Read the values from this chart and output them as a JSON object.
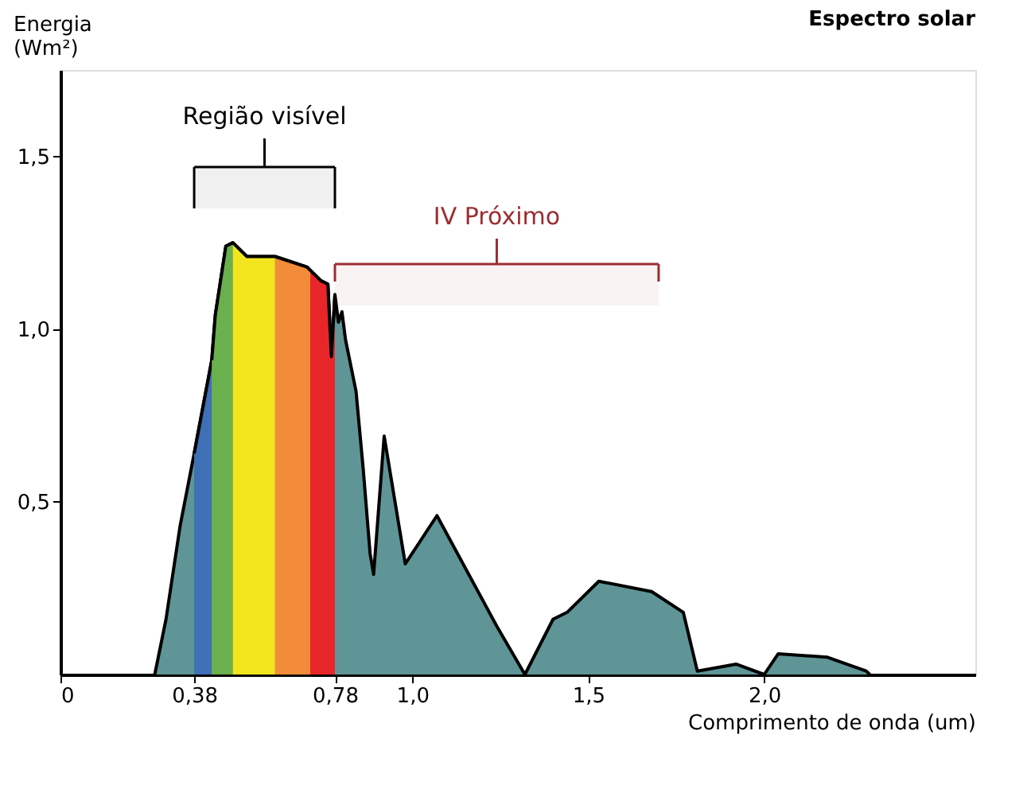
{
  "chart_data": {
    "type": "area",
    "title": "Espectro solar",
    "xlabel": "Comprimento de onda (um)",
    "ylabel": "Energia (Wm²)",
    "xlim": [
      0,
      2.6
    ],
    "ylim": [
      0,
      1.75
    ],
    "xticks": [
      0,
      {
        "value": 0.38,
        "label": "0,38"
      },
      {
        "value": 0.78,
        "label": "0,78"
      },
      {
        "value": 1.0,
        "label": "1,0"
      },
      {
        "value": 1.5,
        "label": "1,5"
      },
      {
        "value": 2.0,
        "label": "2,0"
      }
    ],
    "yticks": [
      {
        "value": 0.5,
        "label": "0,5"
      },
      {
        "value": 1.0,
        "label": "1,0"
      },
      {
        "value": 1.5,
        "label": "1,5"
      }
    ],
    "grid": false,
    "series": [
      {
        "color": "#5f9596",
        "x": [
          0.268,
          0.3,
          0.34,
          0.38,
          0.43,
          0.44,
          0.47,
          0.49,
          0.53,
          0.61,
          0.7,
          0.74,
          0.76,
          0.77,
          0.78,
          0.79,
          0.8,
          0.81,
          0.84,
          0.86,
          0.88,
          0.89,
          0.92,
          0.98,
          1.07,
          1.24,
          1.32,
          1.4,
          1.44,
          1.53,
          1.68,
          1.77,
          1.81,
          1.92,
          2.0,
          2.04,
          2.18,
          2.29,
          2.3
        ],
        "values": [
          0,
          0.16,
          0.43,
          0.64,
          0.91,
          1.04,
          1.24,
          1.25,
          1.21,
          1.21,
          1.18,
          1.14,
          1.13,
          0.92,
          1.1,
          1.02,
          1.05,
          0.97,
          0.82,
          0.6,
          0.35,
          0.29,
          0.69,
          0.32,
          0.46,
          0.14,
          0,
          0.16,
          0.18,
          0.27,
          0.24,
          0.18,
          0.01,
          0.03,
          0,
          0.06,
          0.05,
          0.01,
          0
        ]
      },
      {
        "color": "#3f6fb5",
        "x": [
          0.38,
          0.43
        ],
        "values": [
          0.64,
          0.91
        ]
      },
      {
        "color": "#6ab04c",
        "x": [
          0.43,
          0.44,
          0.47,
          0.49
        ],
        "values": [
          0.91,
          1.04,
          1.24,
          1.25
        ]
      },
      {
        "color": "#f2e51d",
        "x": [
          0.49,
          0.53,
          0.61
        ],
        "values": [
          1.25,
          1.21,
          1.21
        ]
      },
      {
        "color": "#f28c38",
        "x": [
          0.61,
          0.7,
          0.71
        ],
        "values": [
          1.21,
          1.18,
          1.17
        ]
      },
      {
        "color": "#e8262a",
        "x": [
          0.71,
          0.74,
          0.76,
          0.77,
          0.78
        ],
        "values": [
          1.17,
          1.14,
          1.13,
          0.92,
          1.1
        ]
      }
    ],
    "bands": [
      {
        "axis": "x",
        "from": 0.38,
        "to": 0.78,
        "label": "Região visível",
        "color": "#000000"
      },
      {
        "axis": "x",
        "from": 0.78,
        "to": 1.7,
        "label": "IV Próximo",
        "color": "#9b2d30"
      }
    ]
  }
}
